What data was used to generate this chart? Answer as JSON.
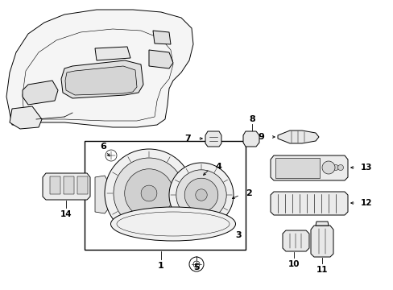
{
  "background_color": "#ffffff",
  "line_color": "#000000",
  "fig_w": 4.89,
  "fig_h": 3.6,
  "dpi": 100
}
